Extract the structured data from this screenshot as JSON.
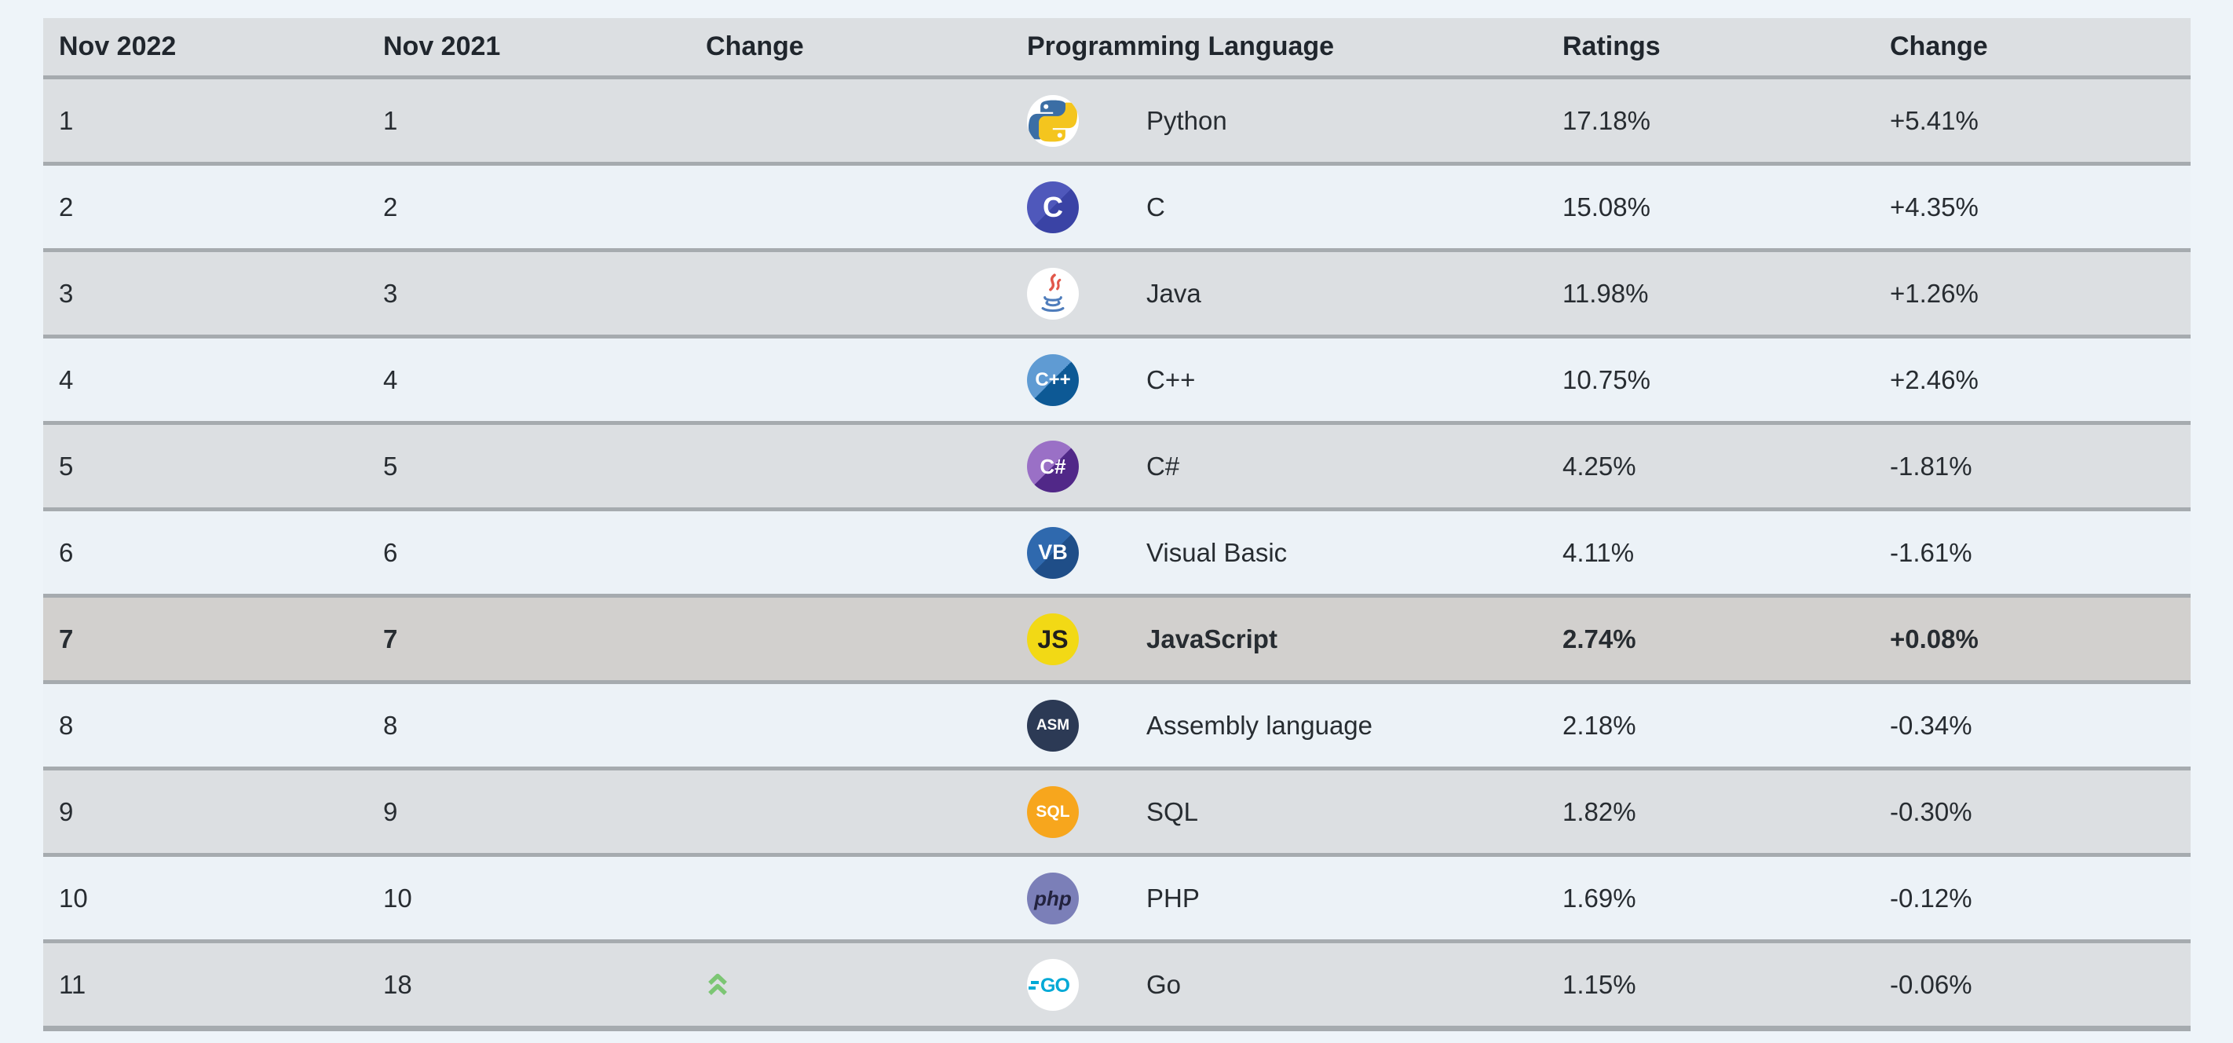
{
  "table": {
    "columns": [
      "Nov 2022",
      "Nov 2021",
      "Change",
      "Programming Language",
      "Ratings",
      "Change"
    ],
    "rows": [
      {
        "rank_now": "1",
        "rank_prev": "1",
        "rank_change": null,
        "language": "Python",
        "ratings": "17.18%",
        "change": "+5.41%",
        "bold": false,
        "icon": {
          "name": "python-icon",
          "kind": "python",
          "bg": "#ffffff",
          "blue": "#3b6ea5",
          "yellow": "#f4c51e"
        }
      },
      {
        "rank_now": "2",
        "rank_prev": "2",
        "rank_change": null,
        "language": "C",
        "ratings": "15.08%",
        "change": "+4.35%",
        "bold": false,
        "icon": {
          "name": "c-language-icon",
          "kind": "text",
          "text": "C",
          "bg1": "#4f58bb",
          "bg2": "#3a43a5",
          "fg": "#ffffff",
          "size": 36
        }
      },
      {
        "rank_now": "3",
        "rank_prev": "3",
        "rank_change": null,
        "language": "Java",
        "ratings": "11.98%",
        "change": "+1.26%",
        "bold": false,
        "icon": {
          "name": "java-icon",
          "kind": "java",
          "bg": "#ffffff",
          "steam": "#e1574a",
          "cup": "#4e7cbb"
        }
      },
      {
        "rank_now": "4",
        "rank_prev": "4",
        "rank_change": null,
        "language": "C++",
        "ratings": "10.75%",
        "change": "+2.46%",
        "bold": false,
        "icon": {
          "name": "cpp-icon",
          "kind": "text",
          "text": "C++",
          "bg1": "#5f9bd3",
          "bg2": "#0d5995",
          "fg": "#ffffff",
          "size": 24
        }
      },
      {
        "rank_now": "5",
        "rank_prev": "5",
        "rank_change": null,
        "language": "C#",
        "ratings": "4.25%",
        "change": "-1.81%",
        "bold": false,
        "icon": {
          "name": "csharp-icon",
          "kind": "text",
          "text": "C#",
          "bg1": "#9a70c6",
          "bg2": "#512888",
          "fg": "#ffffff",
          "size": 26
        }
      },
      {
        "rank_now": "6",
        "rank_prev": "6",
        "rank_change": null,
        "language": "Visual Basic",
        "ratings": "4.11%",
        "change": "-1.61%",
        "bold": false,
        "icon": {
          "name": "visual-basic-icon",
          "kind": "text",
          "text": "VB",
          "bg1": "#2f69ae",
          "bg2": "#1f4e88",
          "fg": "#ffffff",
          "size": 27
        }
      },
      {
        "rank_now": "7",
        "rank_prev": "7",
        "rank_change": null,
        "language": "JavaScript",
        "ratings": "2.74%",
        "change": "+0.08%",
        "bold": true,
        "icon": {
          "name": "javascript-icon",
          "kind": "text",
          "text": "JS",
          "bg1": "#f2d915",
          "fg": "#1f1f1d",
          "size": 32
        }
      },
      {
        "rank_now": "8",
        "rank_prev": "8",
        "rank_change": null,
        "language": "Assembly language",
        "ratings": "2.18%",
        "change": "-0.34%",
        "bold": false,
        "icon": {
          "name": "assembly-icon",
          "kind": "text",
          "text": "ASM",
          "bg1": "#2c3a55",
          "fg": "#ffffff",
          "size": 19
        }
      },
      {
        "rank_now": "9",
        "rank_prev": "9",
        "rank_change": null,
        "language": "SQL",
        "ratings": "1.82%",
        "change": "-0.30%",
        "bold": false,
        "icon": {
          "name": "sql-icon",
          "kind": "text",
          "text": "SQL",
          "bg1": "#f7a61d",
          "fg": "#ffffff",
          "size": 21
        }
      },
      {
        "rank_now": "10",
        "rank_prev": "10",
        "rank_change": null,
        "language": "PHP",
        "ratings": "1.69%",
        "change": "-0.12%",
        "bold": false,
        "icon": {
          "name": "php-icon",
          "kind": "text",
          "text": "php",
          "bg1": "#7b7fb8",
          "fg": "#23233f",
          "size": 26,
          "italic": true
        }
      },
      {
        "rank_now": "11",
        "rank_prev": "18",
        "rank_change": "up",
        "language": "Go",
        "ratings": "1.15%",
        "change": "-0.06%",
        "bold": false,
        "icon": {
          "name": "go-icon",
          "kind": "go",
          "bg": "#ffffff",
          "fg": "#00a9d6"
        }
      }
    ]
  },
  "colors": {
    "page_bg": "#eef4f9",
    "header_bg": "#dcdfe2",
    "header_text": "#20262d",
    "row_gray": "#dcdfe2",
    "row_light": "#ecf2f7",
    "row_highlight": "#d2d0ce",
    "border": "#a6abaf",
    "text": "#272c31",
    "up_green": "#7cc674"
  }
}
